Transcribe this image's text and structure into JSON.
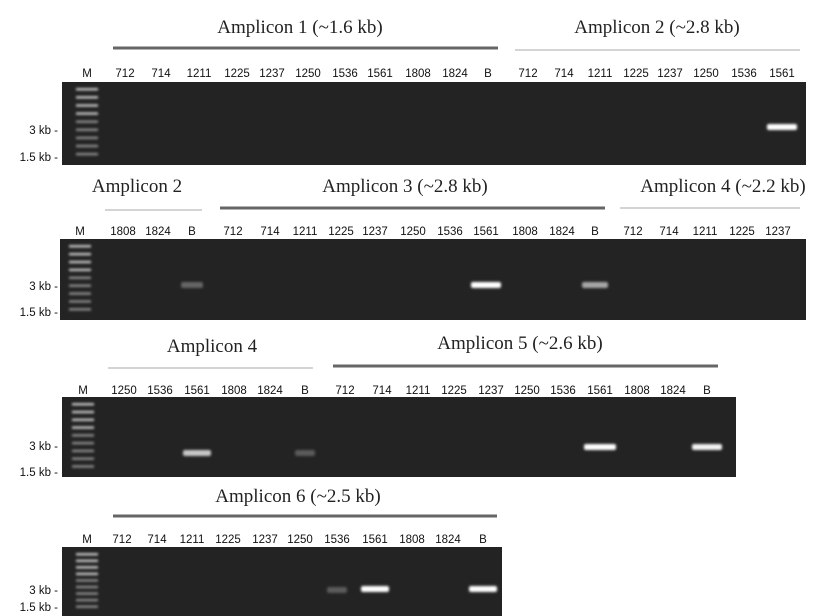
{
  "panels": [
    {
      "headers": [
        "Amplicon 1 (~1.6 kb)",
        "Amplicon 2 (~2.8 kb)"
      ],
      "lanes": [
        "M",
        "712",
        "714",
        "1211",
        "1225",
        "1237",
        "1250",
        "1536",
        "1561",
        "1808",
        "1824",
        "B",
        "712",
        "714",
        "1211",
        "1225",
        "1237",
        "1250",
        "1536",
        "1561"
      ],
      "size_markers": [
        "3 kb -",
        "1.5 kb -"
      ]
    },
    {
      "headers": [
        "Amplicon 2",
        "Amplicon 3 (~2.8 kb)",
        "Amplicon 4 (~2.2 kb)"
      ],
      "lanes": [
        "M",
        "1808",
        "1824",
        "B",
        "712",
        "714",
        "1211",
        "1225",
        "1237",
        "1250",
        "1536",
        "1561",
        "1808",
        "1824",
        "B",
        "712",
        "714",
        "1211",
        "1225",
        "1237"
      ],
      "size_markers": [
        "3 kb -",
        "1.5 kb -"
      ]
    },
    {
      "headers": [
        "Amplicon 4",
        "Amplicon 5 (~2.6 kb)"
      ],
      "lanes": [
        "M",
        "1250",
        "1536",
        "1561",
        "1808",
        "1824",
        "B",
        "712",
        "714",
        "1211",
        "1225",
        "1237",
        "1250",
        "1536",
        "1561",
        "1808",
        "1824",
        "B"
      ],
      "size_markers": [
        "3 kb -",
        "1.5 kb -"
      ]
    },
    {
      "headers": [
        "Amplicon 6 (~2.5 kb)"
      ],
      "lanes": [
        "M",
        "712",
        "714",
        "1211",
        "1225",
        "1237",
        "1250",
        "1536",
        "1561",
        "1808",
        "1824",
        "B"
      ],
      "size_markers": [
        "3 kb -",
        "1.5 kb -"
      ]
    }
  ]
}
